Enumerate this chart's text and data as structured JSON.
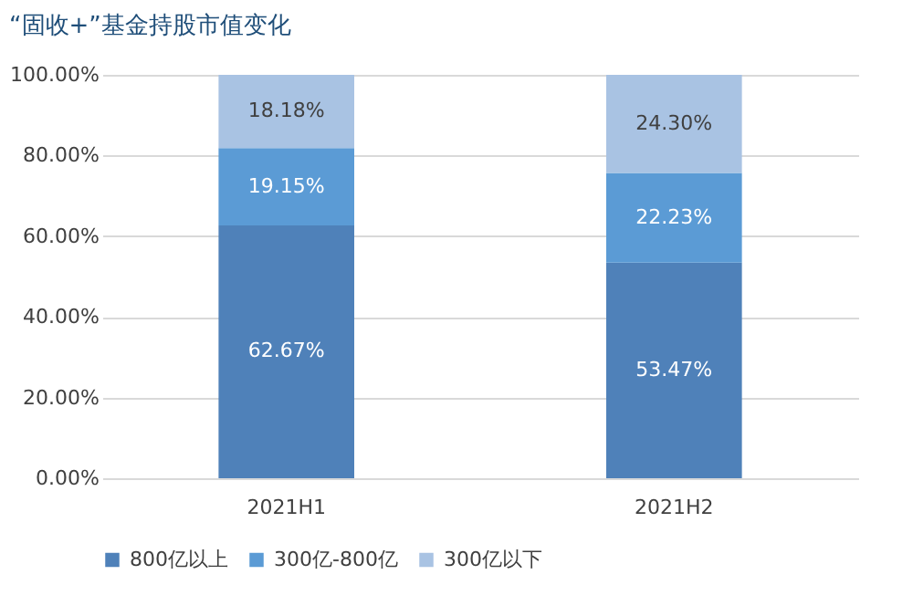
{
  "chart_data": {
    "type": "bar",
    "stacked": true,
    "title": "“固收+”基金持股市值变化",
    "categories": [
      "2021H1",
      "2021H2"
    ],
    "series": [
      {
        "name": "800亿以上",
        "color": "#4f81b9",
        "values": [
          62.67,
          53.47
        ]
      },
      {
        "name": "300亿-800亿",
        "color": "#5b9bd5",
        "values": [
          19.15,
          22.23
        ]
      },
      {
        "name": "300亿以下",
        "color": "#a9c3e3",
        "values": [
          18.18,
          24.3
        ]
      }
    ],
    "value_labels": [
      [
        "62.67%",
        "53.47%"
      ],
      [
        "19.15%",
        "22.23%"
      ],
      [
        "18.18%",
        "24.30%"
      ]
    ],
    "ylim": [
      0,
      100
    ],
    "yticks": [
      {
        "value": 0,
        "label": "0.00%"
      },
      {
        "value": 20,
        "label": "20.00%"
      },
      {
        "value": 40,
        "label": "40.00%"
      },
      {
        "value": 60,
        "label": "60.00%"
      },
      {
        "value": 80,
        "label": "80.00%"
      },
      {
        "value": 100,
        "label": "100.00%"
      }
    ],
    "grid": "y",
    "legend": "bottom"
  }
}
